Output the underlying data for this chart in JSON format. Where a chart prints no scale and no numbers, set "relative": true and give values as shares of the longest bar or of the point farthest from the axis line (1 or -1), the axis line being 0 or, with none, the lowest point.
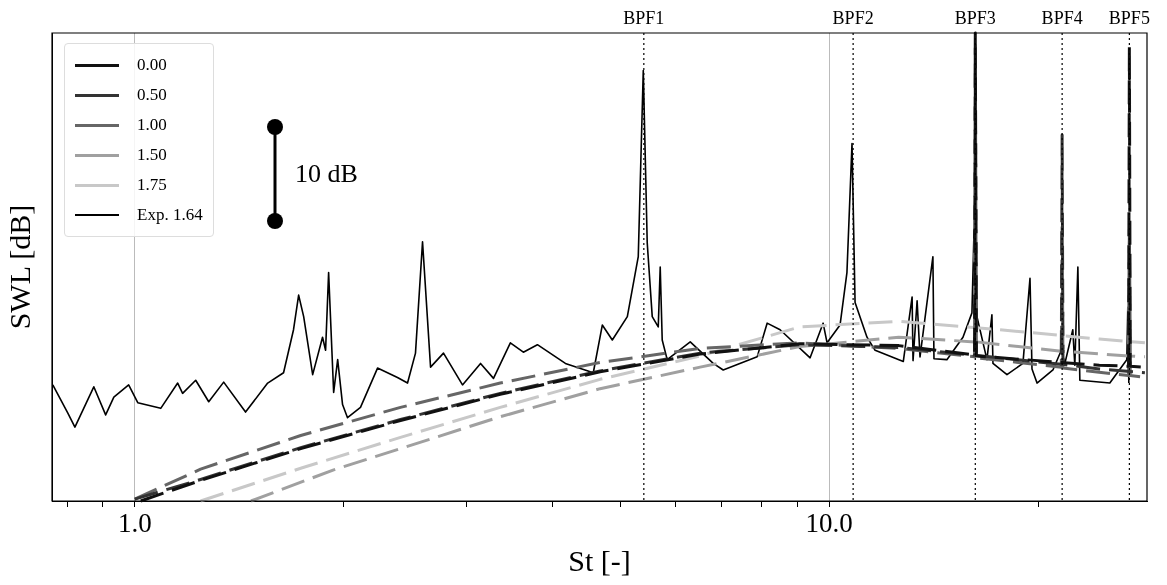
{
  "chart_data": {
    "type": "line",
    "xlabel": "St [-]",
    "ylabel": "SWL [dB]",
    "log": "x",
    "grid": "x",
    "legend": "top left",
    "xlim": [
      0.76,
      28.7
    ],
    "xticks": [
      {
        "value": 0.8,
        "label": null
      },
      {
        "value": 0.9,
        "label": null
      },
      {
        "value": 1,
        "label": "1.0"
      },
      {
        "value": 2,
        "label": null
      },
      {
        "value": 3,
        "label": null
      },
      {
        "value": 4,
        "label": null
      },
      {
        "value": 5,
        "label": null
      },
      {
        "value": 6,
        "label": null
      },
      {
        "value": 7,
        "label": null
      },
      {
        "value": 8,
        "label": null
      },
      {
        "value": 9,
        "label": null
      },
      {
        "value": 10,
        "label": "10.0"
      },
      {
        "value": 20,
        "label": null
      }
    ],
    "relative": true,
    "annotations": [
      "10 dB"
    ],
    "ref_lines": [
      {
        "axis": "x",
        "value": 5.41,
        "label": "BPF1",
        "color": "#000000",
        "line_style": "dotted"
      },
      {
        "axis": "x",
        "value": 10.83,
        "label": "BPF2",
        "color": "#000000",
        "line_style": "dotted"
      },
      {
        "axis": "x",
        "value": 16.24,
        "label": "BPF3",
        "color": "#000000",
        "line_style": "dotted"
      },
      {
        "axis": "x",
        "value": 21.66,
        "label": "BPF4",
        "color": "#000000",
        "line_style": "dotted"
      },
      {
        "axis": "x",
        "value": 27.07,
        "label": "BPF5",
        "color": "#000000",
        "line_style": "dotted"
      }
    ],
    "series": [
      {
        "name": "0.00",
        "color": "#111111",
        "line_style": "dashed",
        "x": [
          1.02,
          1.244,
          1.734,
          2.414,
          3.36,
          4.68,
          6.52,
          9.07,
          12.6,
          16.2,
          16.24,
          16.3,
          21.6,
          24.5,
          27.0,
          27.07,
          27.15,
          28.5
        ],
        "values": [
          0,
          0.044,
          0.112,
          0.172,
          0.228,
          0.276,
          0.314,
          0.336,
          0.332,
          0.312,
          1,
          0.31,
          0.296,
          0.29,
          0.288,
          0.97,
          0.288,
          0.286
        ]
      },
      {
        "name": "0.50",
        "color": "#333333",
        "line_style": "dashed",
        "x": [
          1.0,
          1.244,
          1.734,
          2.414,
          3.36,
          4.68,
          6.52,
          9.07,
          12.6,
          17.6,
          21.6,
          21.66,
          21.72,
          24.5,
          28.5
        ],
        "values": [
          0.004,
          0.046,
          0.114,
          0.174,
          0.23,
          0.278,
          0.316,
          0.334,
          0.328,
          0.306,
          0.292,
          0.782,
          0.292,
          0.282,
          0.274
        ]
      },
      {
        "name": "1.00",
        "color": "#666666",
        "line_style": "dashed",
        "x": [
          1.0,
          1.244,
          1.734,
          2.414,
          3.36,
          4.68,
          6.52,
          9.07,
          12.6,
          16.2,
          16.24,
          16.3,
          21.6,
          21.66,
          21.72,
          27.0,
          27.07,
          27.15,
          28.5
        ],
        "values": [
          0.004,
          0.068,
          0.14,
          0.2,
          0.252,
          0.296,
          0.326,
          0.338,
          0.326,
          0.308,
          0.968,
          0.306,
          0.286,
          0.596,
          0.284,
          0.268,
          0.59,
          0.268,
          0.264
        ]
      },
      {
        "name": "1.50",
        "color": "#a0a0a0",
        "line_style": "dashed",
        "x": [
          1.47,
          1.93,
          2.414,
          3.36,
          4.68,
          6.52,
          9.07,
          12.6,
          16.2,
          16.24,
          16.3,
          21.6,
          27.0,
          27.07,
          27.15,
          28.5
        ],
        "values": [
          0,
          0.066,
          0.112,
          0.18,
          0.24,
          0.286,
          0.33,
          0.35,
          0.34,
          0.848,
          0.34,
          0.32,
          0.31,
          0.554,
          0.31,
          0.308
        ]
      },
      {
        "name": "1.75",
        "color": "#c8c8c8",
        "line_style": "dashed",
        "x": [
          1.244,
          1.734,
          2.414,
          3.36,
          4.68,
          6.52,
          9.07,
          12.6,
          17.6,
          24.5,
          28.5
        ],
        "values": [
          0,
          0.07,
          0.136,
          0.2,
          0.26,
          0.31,
          0.372,
          0.384,
          0.366,
          0.346,
          0.338
        ]
      },
      {
        "name": "Exp. 1.64",
        "color": "#000000",
        "line_style": "solid",
        "x": [
          0.762,
          0.801,
          0.82,
          0.873,
          0.908,
          0.933,
          0.98,
          1.01,
          1.09,
          1.153,
          1.172,
          1.224,
          1.278,
          1.343,
          1.444,
          1.554,
          1.638,
          1.693,
          1.722,
          1.751,
          1.804,
          1.864,
          1.883,
          1.902,
          1.934,
          1.96,
          1.992,
          2.025,
          2.114,
          2.237,
          2.39,
          2.471,
          2.537,
          2.597,
          2.667,
          2.784,
          2.965,
          3.148,
          3.286,
          3.475,
          3.628,
          3.801,
          4.171,
          4.575,
          4.714,
          4.873,
          5.122,
          5.311,
          5.4,
          5.471,
          5.563,
          5.675,
          5.712,
          5.75,
          5.846,
          6.31,
          6.81,
          7.039,
          7.878,
          8.143,
          8.501,
          9.39,
          9.804,
          9.934,
          10.37,
          10.61,
          10.79,
          10.9,
          11.34,
          11.65,
          12.79,
          13.17,
          13.21,
          13.39,
          13.52,
          14.11,
          14.16,
          14.78,
          15.59,
          16.06,
          16.24,
          16.33,
          16.88,
          17.16,
          17.22,
          18.04,
          19.02,
          19.47,
          19.6,
          19.93,
          21.01,
          21.6,
          21.86,
          22.44,
          22.59,
          22.82,
          22.97,
          25.37,
          26.84,
          26.93,
          27.02
        ],
        "values": [
          0.248,
          0.188,
          0.158,
          0.244,
          0.184,
          0.222,
          0.248,
          0.21,
          0.198,
          0.252,
          0.23,
          0.258,
          0.212,
          0.254,
          0.19,
          0.252,
          0.274,
          0.366,
          0.44,
          0.394,
          0.27,
          0.35,
          0.322,
          0.488,
          0.232,
          0.302,
          0.206,
          0.178,
          0.2,
          0.284,
          0.264,
          0.252,
          0.316,
          0.554,
          0.286,
          0.316,
          0.248,
          0.294,
          0.262,
          0.338,
          0.318,
          0.334,
          0.294,
          0.274,
          0.376,
          0.344,
          0.394,
          0.522,
          0.92,
          0.552,
          0.394,
          0.372,
          0.5,
          0.344,
          0.302,
          0.34,
          0.294,
          0.28,
          0.308,
          0.38,
          0.366,
          0.306,
          0.38,
          0.338,
          0.376,
          0.488,
          0.764,
          0.424,
          0.35,
          0.322,
          0.298,
          0.436,
          0.3,
          0.428,
          0.308,
          0.522,
          0.304,
          0.302,
          0.35,
          0.402,
          0.684,
          0.394,
          0.302,
          0.398,
          0.294,
          0.27,
          0.294,
          0.476,
          0.282,
          0.252,
          0.28,
          0.322,
          0.294,
          0.366,
          0.29,
          0.5,
          0.258,
          0.252,
          0.302,
          0.414,
          0.252
        ]
      }
    ]
  }
}
